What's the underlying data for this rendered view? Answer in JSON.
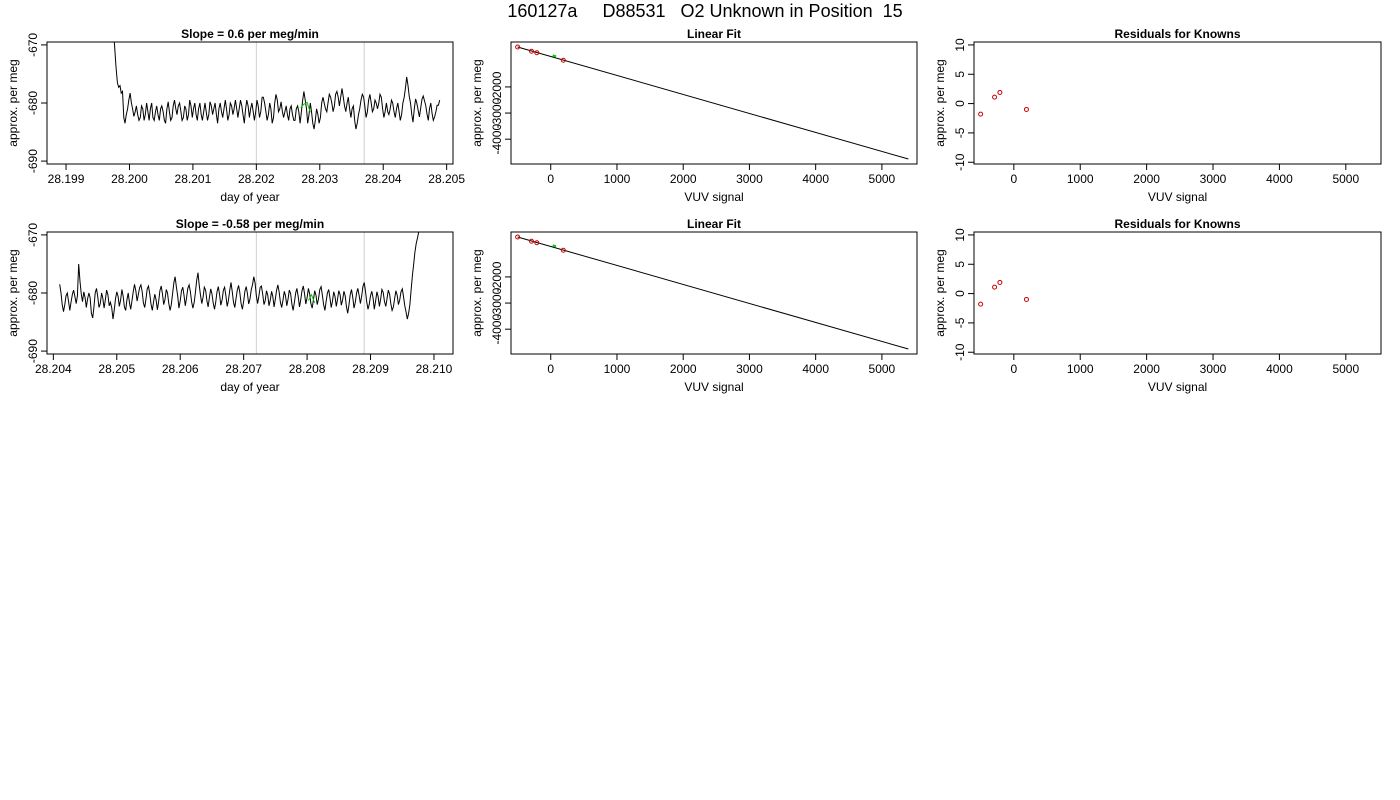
{
  "page": {
    "title": "160127a     D88531   O2 Unknown in Position  15"
  },
  "chart_data": [
    {
      "id": "ts1",
      "type": "line",
      "title": "Slope =  0.6  per meg/min",
      "xlabel": "day of year",
      "ylabel": "approx. per meg",
      "xlim": [
        28.1987,
        28.2051
      ],
      "ylim": [
        -690.5,
        -669.5
      ],
      "xticks": [
        28.199,
        28.2,
        28.201,
        28.202,
        28.203,
        28.204,
        28.205
      ],
      "xtick_labels": [
        "28.199",
        "28.200",
        "28.201",
        "28.202",
        "28.203",
        "28.204",
        "28.205"
      ],
      "yticks": [
        -690,
        -680,
        -670
      ],
      "ytick_labels": [
        "-690",
        "-680",
        "-670"
      ],
      "vlines": [
        28.202,
        28.2037
      ],
      "series": [
        {
          "x_start": 28.19975,
          "x_step": 2e-05,
          "color": "#000000",
          "y": [
            -667.5,
            -671,
            -674,
            -676.5,
            -677.3,
            -677,
            -678.3,
            -678,
            -682.5,
            -683.5,
            -682,
            -681,
            -679.5,
            -678.3,
            -680,
            -681,
            -682.3,
            -681.5,
            -680.5,
            -682,
            -683,
            -682.5,
            -680.5,
            -681,
            -683,
            -682,
            -680,
            -681.5,
            -683,
            -681,
            -680,
            -682.5,
            -683,
            -681.5,
            -680.5,
            -682,
            -683,
            -681,
            -680.5,
            -681.5,
            -683,
            -683.5,
            -681,
            -679.8,
            -681.5,
            -683,
            -682.5,
            -680.5,
            -679.5,
            -681,
            -682,
            -680.5,
            -680,
            -681.5,
            -683,
            -682.5,
            -680.5,
            -681,
            -683,
            -682,
            -679.5,
            -680.5,
            -682.5,
            -681,
            -680,
            -682,
            -683,
            -681,
            -680,
            -682,
            -683,
            -681.5,
            -680,
            -681.5,
            -683,
            -682,
            -679.8,
            -680.5,
            -682,
            -681,
            -680,
            -682,
            -683.5,
            -681,
            -680,
            -681.5,
            -682.5,
            -681,
            -679.5,
            -681,
            -683,
            -682,
            -680,
            -680.5,
            -682,
            -681,
            -679.5,
            -681,
            -682.5,
            -681,
            -679.5,
            -680.5,
            -682,
            -683.5,
            -681,
            -679.5,
            -680.5,
            -682.5,
            -681,
            -680,
            -681.5,
            -683,
            -681.5,
            -679.5,
            -680.5,
            -682.5,
            -681.5,
            -679,
            -679,
            -680,
            -681.5,
            -683,
            -682,
            -680,
            -681,
            -683.5,
            -682.5,
            -680,
            -678.5,
            -679.5,
            -681.5,
            -681,
            -679.8,
            -681.5,
            -682.5,
            -681.5,
            -680.5,
            -682,
            -683,
            -681,
            -680.5,
            -682,
            -683,
            -683,
            -681,
            -680.5,
            -681.5,
            -683.5,
            -681.5,
            -679.5,
            -678,
            -679.5,
            -681,
            -683.5,
            -682,
            -680,
            -681.5,
            -683.5,
            -684.5,
            -683,
            -681,
            -682,
            -683.5,
            -682.5,
            -680,
            -679,
            -680,
            -681,
            -681.5,
            -680,
            -678.5,
            -679,
            -680,
            -681.5,
            -680.5,
            -678.5,
            -678,
            -679,
            -680.5,
            -679,
            -677.5,
            -679,
            -680.5,
            -681.5,
            -680,
            -679,
            -681,
            -682.5,
            -681,
            -680.5,
            -683,
            -684.5,
            -683.5,
            -682,
            -681,
            -679.5,
            -678.5,
            -679,
            -680.5,
            -682.5,
            -681.5,
            -679.5,
            -678.5,
            -680,
            -681.5,
            -681,
            -679.5,
            -680,
            -681,
            -680,
            -678.5,
            -679,
            -681,
            -682.5,
            -681.5,
            -680,
            -681.5,
            -682,
            -681,
            -679.5,
            -680,
            -681.5,
            -682.5,
            -681,
            -680,
            -681.5,
            -683,
            -682,
            -680,
            -679,
            -677.5,
            -675.5,
            -677,
            -678.8,
            -680,
            -682,
            -683.3,
            -681,
            -679.3,
            -680,
            -681.2,
            -682.4,
            -681,
            -679.4,
            -678.8,
            -679.6,
            -680.4,
            -681.9,
            -683,
            -681,
            -680,
            -681.8,
            -683,
            -682.4,
            -681.5,
            -680.4,
            -680.4,
            -679.5
          ]
        },
        {
          "x": [
            28.2027,
            28.20275,
            28.2028,
            28.20285
          ],
          "y": [
            -680.8,
            -680.2,
            -679.9,
            -681.6
          ],
          "color": "#00cc00"
        }
      ]
    },
    {
      "id": "lf1",
      "type": "line",
      "title": "Linear Fit",
      "xlabel": "VUV signal",
      "ylabel": "approx. per meg",
      "xlim": [
        -600,
        5530
      ],
      "ylim": [
        -4950,
        -280
      ],
      "xticks": [
        0,
        1000,
        2000,
        3000,
        4000,
        5000
      ],
      "xtick_labels": [
        "0",
        "1000",
        "2000",
        "3000",
        "4000",
        "5000"
      ],
      "yticks": [
        -4000,
        -3000,
        -2000
      ],
      "ytick_labels": [
        "-4000",
        "-3000",
        "-2000"
      ],
      "fit_line": {
        "x": [
          -500,
          5400
        ],
        "y": [
          -470,
          -4760
        ],
        "color": "#000000"
      },
      "points": {
        "x": [
          -500,
          -290,
          -210,
          190
        ],
        "y": [
          -470,
          -633,
          -690,
          -980
        ],
        "color": "#cc0000"
      },
      "unknown": {
        "x": [
          30,
          80
        ],
        "y": [
          -792,
          -830
        ],
        "color": "#00cc00"
      }
    },
    {
      "id": "rs1",
      "type": "scatter",
      "title": "Residuals for Knowns",
      "xlabel": "VUV signal",
      "ylabel": "approx. per meg",
      "xlim": [
        -600,
        5530
      ],
      "ylim": [
        -10.3,
        10.5
      ],
      "xticks": [
        0,
        1000,
        2000,
        3000,
        4000,
        5000
      ],
      "xtick_labels": [
        "0",
        "1000",
        "2000",
        "3000",
        "4000",
        "5000"
      ],
      "yticks": [
        -10,
        -5,
        0,
        5,
        10
      ],
      "ytick_labels": [
        "-10",
        "-5",
        "0",
        "5",
        "10"
      ],
      "points": {
        "x": [
          -500,
          -290,
          -210,
          190
        ],
        "y": [
          -1.8,
          1.1,
          1.9,
          -1.0
        ],
        "color": "#cc0000"
      }
    },
    {
      "id": "ts2",
      "type": "line",
      "title": "Slope =  -0.58  per meg/min",
      "xlabel": "day of year",
      "ylabel": "approx. per meg",
      "xlim": [
        28.2039,
        28.2103
      ],
      "ylim": [
        -690.5,
        -669.5
      ],
      "xticks": [
        28.204,
        28.205,
        28.206,
        28.207,
        28.208,
        28.209,
        28.21
      ],
      "xtick_labels": [
        "28.204",
        "28.205",
        "28.206",
        "28.207",
        "28.208",
        "28.209",
        "28.210"
      ],
      "yticks": [
        -690,
        -680,
        -670
      ],
      "ytick_labels": [
        "-690",
        "-680",
        "-670"
      ],
      "vlines": [
        28.2072,
        28.2089
      ],
      "series": [
        {
          "x_start": 28.2041,
          "x_step": 2e-05,
          "color": "#000000",
          "y": [
            -678.5,
            -680,
            -682,
            -683.2,
            -682,
            -680.5,
            -680,
            -681.5,
            -683,
            -681.5,
            -680.2,
            -679.5,
            -680.6,
            -681.8,
            -680.5,
            -675,
            -678,
            -680.2,
            -681.5,
            -679.8,
            -680.8,
            -682.5,
            -681,
            -680,
            -680.8,
            -683.5,
            -684.3,
            -682.5,
            -680,
            -679.2,
            -680.6,
            -682.5,
            -681.8,
            -680,
            -680.9,
            -682.6,
            -681.1,
            -679.5,
            -680.3,
            -682.2,
            -681.6,
            -682.5,
            -684.5,
            -683,
            -681,
            -679.8,
            -680.6,
            -682.3,
            -681.2,
            -679.4,
            -680.5,
            -682.4,
            -683,
            -681.2,
            -680,
            -681.7,
            -682.8,
            -681.3,
            -679.7,
            -678.5,
            -679.6,
            -681.4,
            -680.3,
            -679.1,
            -678.6,
            -679.8,
            -681.7,
            -682.5,
            -681,
            -679.3,
            -678.8,
            -680.2,
            -681.9,
            -683,
            -681.5,
            -680.2,
            -681.2,
            -682.9,
            -681.4,
            -679.6,
            -678.8,
            -680.2,
            -682,
            -681.1,
            -679.4,
            -680,
            -681.8,
            -683,
            -682,
            -680.1,
            -678.2,
            -677.2,
            -679,
            -680.5,
            -682.6,
            -681.4,
            -679.6,
            -679,
            -680.4,
            -682.2,
            -680.8,
            -679.2,
            -678.6,
            -679.8,
            -681.5,
            -682.6,
            -681.6,
            -679.9,
            -677.8,
            -676.5,
            -678.6,
            -680.4,
            -681.8,
            -680.7,
            -679,
            -679.5,
            -681.3,
            -682.4,
            -680.8,
            -679.3,
            -680.1,
            -681.7,
            -682.8,
            -681.6,
            -679.8,
            -678.9,
            -680.3,
            -682.1,
            -681.2,
            -679.5,
            -679,
            -680.5,
            -682.3,
            -681.3,
            -679.6,
            -678.2,
            -679.7,
            -681.6,
            -682.5,
            -681,
            -679.5,
            -678.7,
            -679.9,
            -681.8,
            -682.8,
            -681.4,
            -679.7,
            -678.9,
            -680.2,
            -681.9,
            -681,
            -679.4,
            -678.6,
            -677.2,
            -678.3,
            -680.4,
            -681.8,
            -680.5,
            -679,
            -678.8,
            -680.2,
            -682,
            -681.3,
            -679.6,
            -680.4,
            -682.2,
            -681.2,
            -679.7,
            -680.6,
            -682.4,
            -681,
            -679.5,
            -678.6,
            -679.9,
            -681.6,
            -682.5,
            -681.2,
            -679.7,
            -680.5,
            -682.2,
            -681,
            -679.5,
            -680.1,
            -681.9,
            -683,
            -681.6,
            -680,
            -679.2,
            -680.6,
            -682.4,
            -681.2,
            -679.6,
            -678.8,
            -680.2,
            -681.9,
            -680.8,
            -679.2,
            -680.1,
            -681.8,
            -682.6,
            -681.2,
            -679.6,
            -680.4,
            -682,
            -681,
            -679.4,
            -678.9,
            -680.3,
            -682,
            -683,
            -681.5,
            -680,
            -679.4,
            -680.8,
            -682.5,
            -681.4,
            -679.8,
            -680.6,
            -682.3,
            -681.1,
            -679.6,
            -680.3,
            -682.1,
            -681.2,
            -679.7,
            -680.5,
            -682.3,
            -683.5,
            -682,
            -680.3,
            -679.4,
            -680.8,
            -682.6,
            -681.6,
            -680,
            -679.2,
            -680.4,
            -681.8,
            -680.5,
            -678.9,
            -678.2,
            -679.7,
            -681.5,
            -682.8,
            -681.9,
            -680.5,
            -679.7,
            -680.9,
            -682.8,
            -681.4,
            -679.8,
            -680.6,
            -682.3,
            -681,
            -679.4,
            -679.9,
            -681.5,
            -682.3,
            -681,
            -679.5,
            -680.2,
            -681.8,
            -683,
            -682.4,
            -681,
            -679.6,
            -680.4,
            -682,
            -681.2,
            -679.8,
            -679.3,
            -680.6,
            -682.2,
            -683.3,
            -684.5,
            -683.5,
            -682,
            -679.5,
            -677,
            -675,
            -673,
            -671.5,
            -670.5,
            -669.5
          ]
        },
        {
          "x": [
            28.20802,
            28.20807,
            28.20812
          ],
          "y": [
            -681.3,
            -680.3,
            -681.7
          ],
          "color": "#00cc00"
        }
      ]
    },
    {
      "id": "lf2",
      "type": "line",
      "title": "Linear Fit",
      "xlabel": "VUV signal",
      "ylabel": "approx. per meg",
      "xlim": [
        -600,
        5530
      ],
      "ylim": [
        -4950,
        -280
      ],
      "xticks": [
        0,
        1000,
        2000,
        3000,
        4000,
        5000
      ],
      "xtick_labels": [
        "0",
        "1000",
        "2000",
        "3000",
        "4000",
        "5000"
      ],
      "yticks": [
        -4000,
        -3000,
        -2000
      ],
      "ytick_labels": [
        "-4000",
        "-3000",
        "-2000"
      ],
      "fit_line": {
        "x": [
          -500,
          5400
        ],
        "y": [
          -470,
          -4760
        ],
        "color": "#000000"
      },
      "points": {
        "x": [
          -500,
          -290,
          -210,
          190
        ],
        "y": [
          -470,
          -633,
          -690,
          -980
        ],
        "color": "#cc0000"
      },
      "unknown": {
        "x": [
          30,
          80
        ],
        "y": [
          -792,
          -830
        ],
        "color": "#00cc00"
      }
    },
    {
      "id": "rs2",
      "type": "scatter",
      "title": "Residuals for Knowns",
      "xlabel": "VUV signal",
      "ylabel": "approx. per meg",
      "xlim": [
        -600,
        5530
      ],
      "ylim": [
        -10.3,
        10.5
      ],
      "xticks": [
        0,
        1000,
        2000,
        3000,
        4000,
        5000
      ],
      "xtick_labels": [
        "0",
        "1000",
        "2000",
        "3000",
        "4000",
        "5000"
      ],
      "yticks": [
        -10,
        -5,
        0,
        5,
        10
      ],
      "ytick_labels": [
        "-10",
        "-5",
        "0",
        "5",
        "10"
      ],
      "points": {
        "x": [
          -500,
          -290,
          -210,
          190
        ],
        "y": [
          -1.8,
          1.1,
          1.9,
          -1.0
        ],
        "color": "#cc0000"
      }
    }
  ]
}
